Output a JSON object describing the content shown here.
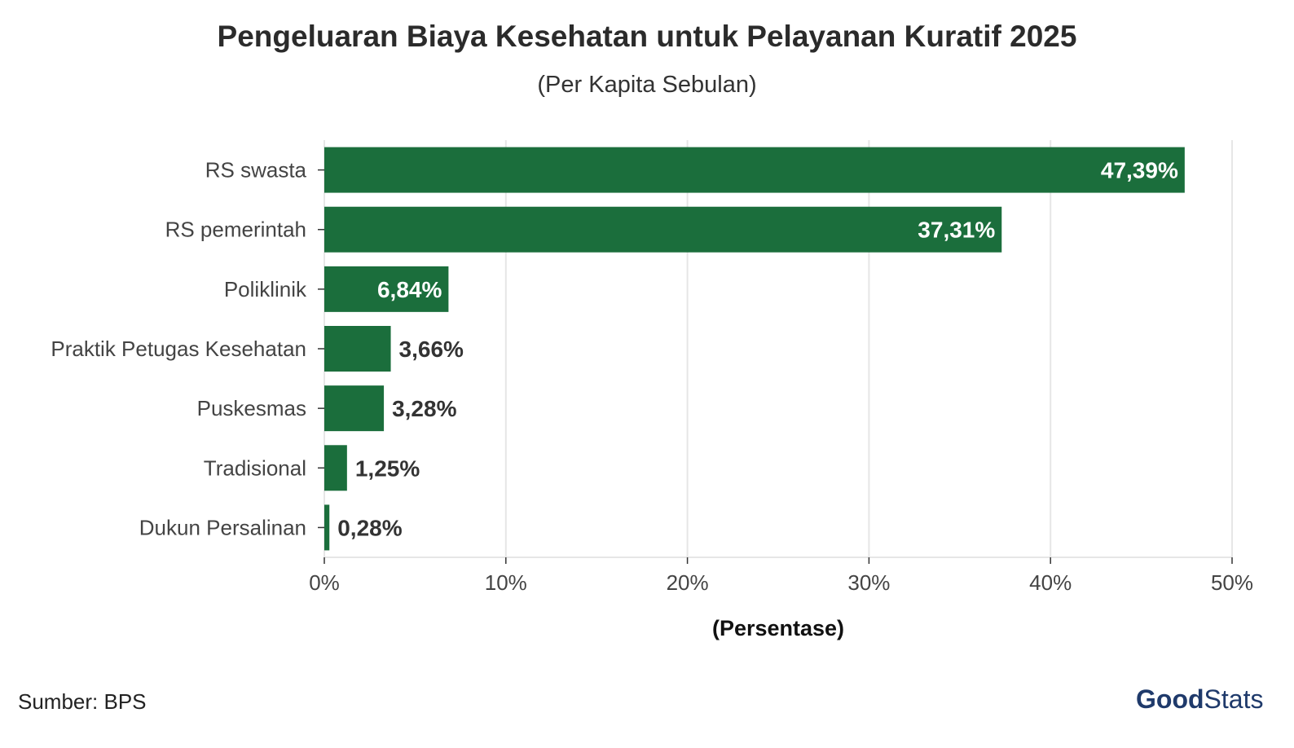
{
  "header": {
    "title": "Pengeluaran Biaya Kesehatan untuk Pelayanan Kuratif 2025",
    "subtitle": "(Per Kapita Sebulan)"
  },
  "footer": {
    "source": "Sumber: BPS",
    "logo_part1": "Good",
    "logo_part2": "Stats"
  },
  "colors": {
    "bar": "#1b6e3c",
    "label_inside": "#ffffff",
    "label_outside": "#333333",
    "grid": "#e6e6e6"
  },
  "chart_data": {
    "type": "bar",
    "orientation": "horizontal",
    "categories": [
      "RS swasta",
      "RS pemerintah",
      "Poliklinik",
      "Praktik Petugas Kesehatan",
      "Puskesmas",
      "Tradisional",
      "Dukun Persalinan"
    ],
    "values": [
      47.39,
      37.31,
      6.84,
      3.66,
      3.28,
      1.25,
      0.28
    ],
    "data_labels": [
      "47,39%",
      "37,31%",
      "6,84%",
      "3,66%",
      "3,28%",
      "1,25%",
      "0,28%"
    ],
    "xlabel": "(Persentase)",
    "xlim": [
      0,
      50
    ],
    "x_ticks": [
      0,
      10,
      20,
      30,
      40,
      50
    ],
    "x_tick_labels": [
      "0%",
      "10%",
      "20%",
      "30%",
      "40%",
      "50%"
    ],
    "grid": true
  }
}
